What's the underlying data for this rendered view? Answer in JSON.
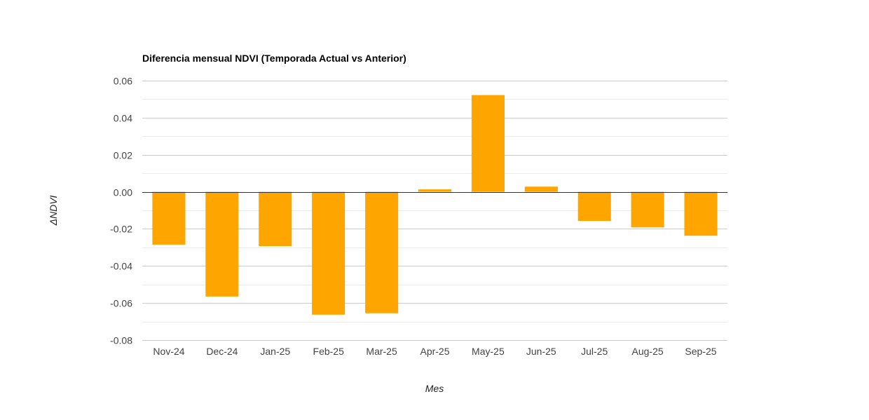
{
  "chart_data": {
    "type": "bar",
    "title": "Diferencia mensual NDVI (Temporada Actual vs Anterior)",
    "xlabel": "Mes",
    "ylabel": "ΔNDVI",
    "categories": [
      "Nov-24",
      "Dec-24",
      "Jan-25",
      "Feb-25",
      "Mar-25",
      "Apr-25",
      "May-25",
      "Jun-25",
      "Jul-25",
      "Aug-25",
      "Sep-25"
    ],
    "values": [
      -0.0285,
      -0.0565,
      -0.0293,
      -0.0663,
      -0.0655,
      0.0013,
      0.0522,
      0.0028,
      -0.0157,
      -0.0192,
      -0.0237
    ],
    "ylim": [
      -0.08,
      0.06
    ],
    "yticks": [
      "0.06",
      "0.04",
      "0.02",
      "0.00",
      "-0.02",
      "-0.04",
      "-0.06",
      "-0.08"
    ],
    "ytick_values": [
      0.06,
      0.04,
      0.02,
      0.0,
      -0.02,
      -0.04,
      -0.06,
      -0.08
    ],
    "bar_color": "#ffa500",
    "grid": true,
    "legend": false
  }
}
